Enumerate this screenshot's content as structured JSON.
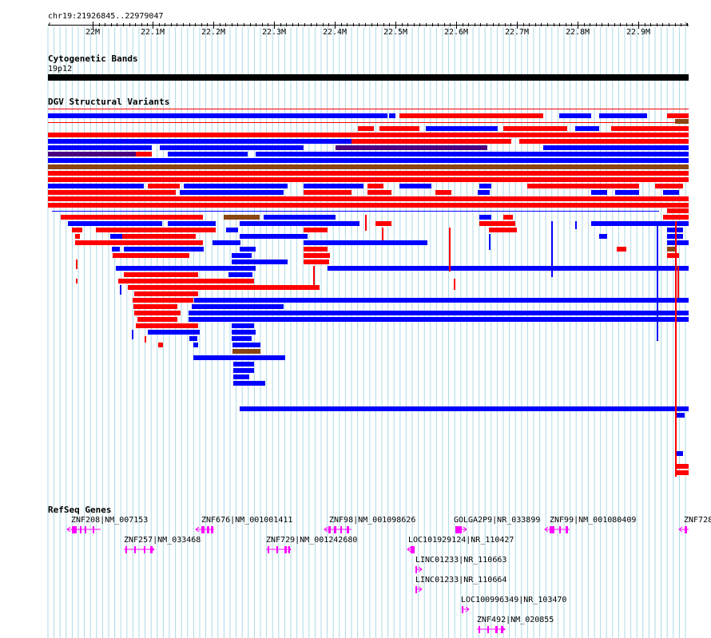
{
  "ruler": {
    "region": "chr19:21926845..22979047",
    "ticks": [
      "22M",
      "22.1M",
      "22.2M",
      "22.3M",
      "22.4M",
      "22.5M",
      "22.6M",
      "22.7M",
      "22.8M",
      "22.9M"
    ]
  },
  "tracks": {
    "cytobands": {
      "title": "Cytogenetic Bands",
      "band": "19p12"
    },
    "dgv": {
      "title": "DGV Structural Variants"
    },
    "refseq": {
      "title": "RefSeq Genes",
      "genes": [
        "ZNF208|NM_007153",
        "ZNF257|NM_033468",
        "ZNF676|NM_001001411",
        "ZNF729|NM_001242680",
        "ZNF98|NM_001098626",
        "LOC101929124|NR_110427",
        "LINC01233|NR_110663",
        "LINC01233|NR_110664",
        "GOLGA2P9|NR_033899",
        "LOC100996349|NR_103470",
        "ZNF492|NM_020855",
        "ZNF99|NM_001080409",
        "ZNF728"
      ]
    }
  },
  "colors": {
    "loss": "#ff0000",
    "gain": "#0000ff",
    "complex": "#8b4513",
    "other": "#4b0082",
    "gene": "#ff00ff",
    "grid": "#add8e6"
  }
}
